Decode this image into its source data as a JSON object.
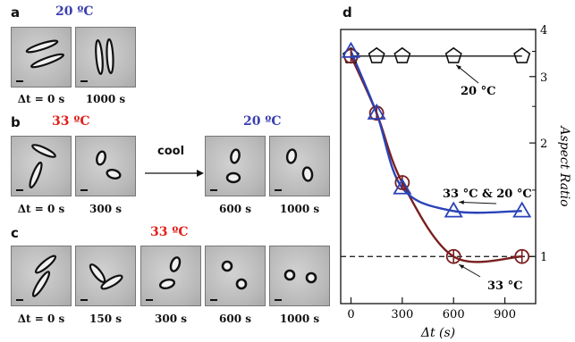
{
  "panels": {
    "a": {
      "letter": "a",
      "temp": "20 ºC",
      "labels": [
        "Δt = 0 s",
        "1000 s"
      ]
    },
    "b": {
      "letter": "b",
      "temp_left": "33 ºC",
      "temp_right": "20 ºC",
      "cool_label": "cool",
      "labels": [
        "Δt = 0 s",
        "300 s",
        "600 s",
        "1000 s"
      ]
    },
    "c": {
      "letter": "c",
      "temp": "33 ºC",
      "labels": [
        "Δt = 0 s",
        "150 s",
        "300 s",
        "600 s",
        "1000 s"
      ]
    },
    "d": {
      "letter": "d"
    }
  },
  "colors": {
    "red_temp": "#e0201b",
    "blue_temp": "#3a3fb0",
    "blue_series": "#2a43b8",
    "red_series": "#7a1f1f",
    "black_series": "#111111"
  },
  "chart_data": {
    "type": "line",
    "xlabel": "Δt (s)",
    "ylabel": "Aspect Ratio",
    "xlim": [
      -60,
      1080
    ],
    "ylim": [
      0.75,
      4.0
    ],
    "y_scale": "log",
    "xticks": [
      0,
      300,
      600,
      900
    ],
    "yticks": [
      1,
      2,
      3,
      4
    ],
    "reference_line": {
      "y": 1,
      "style": "dashed"
    },
    "series": [
      {
        "name": "20 °C",
        "marker": "pentagon",
        "color": "#111111",
        "x": [
          0,
          150,
          300,
          600,
          1000
        ],
        "y": [
          3.4,
          3.4,
          3.4,
          3.4,
          3.4
        ]
      },
      {
        "name": "33 °C",
        "marker": "circle-cross",
        "color": "#7a1f1f",
        "x": [
          0,
          150,
          300,
          600,
          1000
        ],
        "y": [
          3.4,
          2.4,
          1.57,
          1.0,
          1.0
        ]
      },
      {
        "name": "33 °C & 20 °C",
        "marker": "triangle",
        "color": "#2a43b8",
        "x": [
          0,
          150,
          300,
          600,
          1000
        ],
        "y": [
          3.5,
          2.4,
          1.52,
          1.32,
          1.32
        ]
      }
    ],
    "annotations": [
      {
        "text": "20 °C",
        "series": "20 °C"
      },
      {
        "text": "33 °C & 20 °C",
        "series": "33 °C & 20 °C"
      },
      {
        "text": "33 °C",
        "series": "33 °C"
      }
    ]
  }
}
